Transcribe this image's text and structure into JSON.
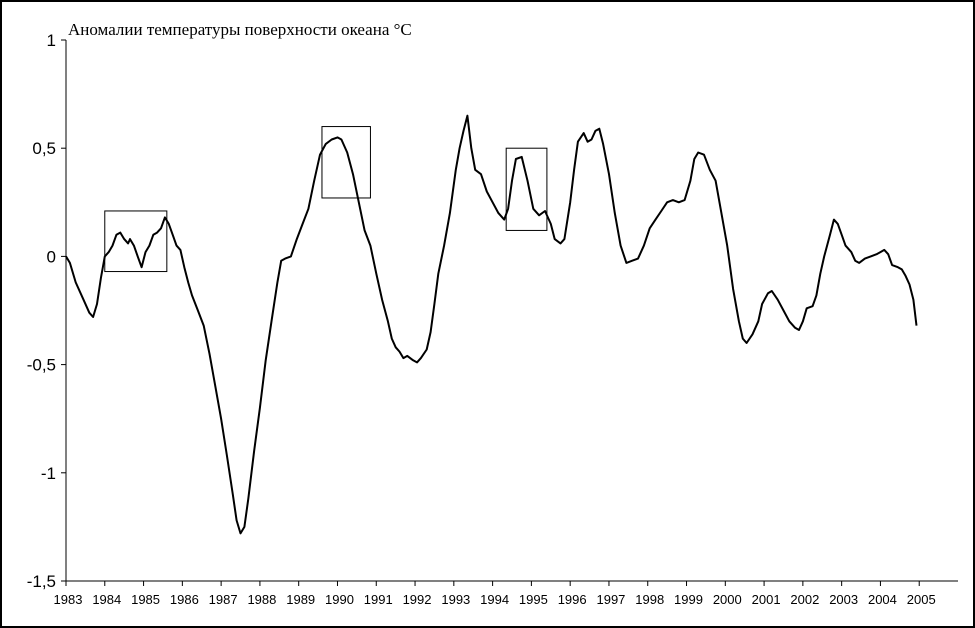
{
  "chart_data": {
    "type": "line",
    "title": "Аномалии температуры поверхности океана °С",
    "xlabel": "",
    "ylabel": "",
    "xlim": [
      1983.0,
      2006.0
    ],
    "ylim": [
      -1.5,
      1.0
    ],
    "grid": false,
    "legend": "none",
    "y_ticks": [
      "1",
      "0,5",
      "0",
      "-0,5",
      "-1",
      "-1,5"
    ],
    "y_tick_values": [
      1,
      0.5,
      0,
      -0.5,
      -1,
      -1.5
    ],
    "x_ticks": [
      "1983",
      "1984",
      "1985",
      "1986",
      "1987",
      "1988",
      "1989",
      "1990",
      "1991",
      "1992",
      "1993",
      "1994",
      "1995",
      "1996",
      "1997",
      "1998",
      "1999",
      "2000",
      "2001",
      "2002",
      "2003",
      "2004",
      "2005"
    ],
    "series": [
      {
        "color": "#000000",
        "points": [
          [
            1983.0,
            0.0
          ],
          [
            1983.1,
            -0.03
          ],
          [
            1983.25,
            -0.12
          ],
          [
            1983.45,
            -0.2
          ],
          [
            1983.6,
            -0.26
          ],
          [
            1983.7,
            -0.28
          ],
          [
            1983.8,
            -0.22
          ],
          [
            1983.9,
            -0.1
          ],
          [
            1984.0,
            0.0
          ],
          [
            1984.1,
            0.02
          ],
          [
            1984.2,
            0.05
          ],
          [
            1984.3,
            0.1
          ],
          [
            1984.4,
            0.11
          ],
          [
            1984.5,
            0.08
          ],
          [
            1984.6,
            0.06
          ],
          [
            1984.65,
            0.08
          ],
          [
            1984.75,
            0.05
          ],
          [
            1984.85,
            0.0
          ],
          [
            1984.95,
            -0.05
          ],
          [
            1985.05,
            0.02
          ],
          [
            1985.15,
            0.05
          ],
          [
            1985.25,
            0.1
          ],
          [
            1985.35,
            0.11
          ],
          [
            1985.45,
            0.13
          ],
          [
            1985.55,
            0.18
          ],
          [
            1985.65,
            0.15
          ],
          [
            1985.75,
            0.1
          ],
          [
            1985.85,
            0.05
          ],
          [
            1985.95,
            0.03
          ],
          [
            1986.05,
            -0.05
          ],
          [
            1986.15,
            -0.12
          ],
          [
            1986.25,
            -0.18
          ],
          [
            1986.4,
            -0.25
          ],
          [
            1986.55,
            -0.32
          ],
          [
            1986.7,
            -0.45
          ],
          [
            1986.85,
            -0.6
          ],
          [
            1987.0,
            -0.75
          ],
          [
            1987.15,
            -0.92
          ],
          [
            1987.3,
            -1.1
          ],
          [
            1987.4,
            -1.22
          ],
          [
            1987.5,
            -1.28
          ],
          [
            1987.6,
            -1.25
          ],
          [
            1987.7,
            -1.12
          ],
          [
            1987.85,
            -0.9
          ],
          [
            1988.0,
            -0.7
          ],
          [
            1988.15,
            -0.48
          ],
          [
            1988.3,
            -0.3
          ],
          [
            1988.45,
            -0.12
          ],
          [
            1988.55,
            -0.02
          ],
          [
            1988.65,
            -0.01
          ],
          [
            1988.8,
            0.0
          ],
          [
            1988.95,
            0.08
          ],
          [
            1989.1,
            0.15
          ],
          [
            1989.25,
            0.22
          ],
          [
            1989.4,
            0.35
          ],
          [
            1989.55,
            0.47
          ],
          [
            1989.7,
            0.52
          ],
          [
            1989.85,
            0.54
          ],
          [
            1990.0,
            0.55
          ],
          [
            1990.1,
            0.54
          ],
          [
            1990.25,
            0.48
          ],
          [
            1990.4,
            0.38
          ],
          [
            1990.55,
            0.25
          ],
          [
            1990.7,
            0.12
          ],
          [
            1990.85,
            0.05
          ],
          [
            1991.0,
            -0.08
          ],
          [
            1991.15,
            -0.2
          ],
          [
            1991.3,
            -0.3
          ],
          [
            1991.4,
            -0.38
          ],
          [
            1991.5,
            -0.42
          ],
          [
            1991.6,
            -0.44
          ],
          [
            1991.7,
            -0.47
          ],
          [
            1991.8,
            -0.46
          ],
          [
            1991.95,
            -0.48
          ],
          [
            1992.05,
            -0.49
          ],
          [
            1992.15,
            -0.47
          ],
          [
            1992.3,
            -0.43
          ],
          [
            1992.4,
            -0.35
          ],
          [
            1992.5,
            -0.22
          ],
          [
            1992.6,
            -0.08
          ],
          [
            1992.75,
            0.05
          ],
          [
            1992.9,
            0.2
          ],
          [
            1993.05,
            0.4
          ],
          [
            1993.15,
            0.5
          ],
          [
            1993.25,
            0.58
          ],
          [
            1993.35,
            0.65
          ],
          [
            1993.45,
            0.5
          ],
          [
            1993.55,
            0.4
          ],
          [
            1993.7,
            0.38
          ],
          [
            1993.85,
            0.3
          ],
          [
            1994.0,
            0.25
          ],
          [
            1994.15,
            0.2
          ],
          [
            1994.3,
            0.17
          ],
          [
            1994.4,
            0.22
          ],
          [
            1994.5,
            0.35
          ],
          [
            1994.6,
            0.45
          ],
          [
            1994.75,
            0.46
          ],
          [
            1994.9,
            0.35
          ],
          [
            1995.05,
            0.22
          ],
          [
            1995.2,
            0.19
          ],
          [
            1995.35,
            0.21
          ],
          [
            1995.5,
            0.15
          ],
          [
            1995.6,
            0.08
          ],
          [
            1995.75,
            0.06
          ],
          [
            1995.85,
            0.08
          ],
          [
            1996.0,
            0.25
          ],
          [
            1996.1,
            0.4
          ],
          [
            1996.2,
            0.53
          ],
          [
            1996.35,
            0.57
          ],
          [
            1996.45,
            0.53
          ],
          [
            1996.55,
            0.54
          ],
          [
            1996.65,
            0.58
          ],
          [
            1996.75,
            0.59
          ],
          [
            1996.85,
            0.52
          ],
          [
            1997.0,
            0.38
          ],
          [
            1997.15,
            0.2
          ],
          [
            1997.3,
            0.05
          ],
          [
            1997.45,
            -0.03
          ],
          [
            1997.6,
            -0.02
          ],
          [
            1997.75,
            -0.01
          ],
          [
            1997.9,
            0.05
          ],
          [
            1998.05,
            0.13
          ],
          [
            1998.2,
            0.17
          ],
          [
            1998.35,
            0.21
          ],
          [
            1998.5,
            0.25
          ],
          [
            1998.65,
            0.26
          ],
          [
            1998.8,
            0.25
          ],
          [
            1998.95,
            0.26
          ],
          [
            1999.1,
            0.35
          ],
          [
            1999.2,
            0.45
          ],
          [
            1999.3,
            0.48
          ],
          [
            1999.45,
            0.47
          ],
          [
            1999.6,
            0.4
          ],
          [
            1999.75,
            0.35
          ],
          [
            1999.9,
            0.2
          ],
          [
            2000.05,
            0.05
          ],
          [
            2000.2,
            -0.15
          ],
          [
            2000.35,
            -0.3
          ],
          [
            2000.45,
            -0.38
          ],
          [
            2000.55,
            -0.4
          ],
          [
            2000.7,
            -0.36
          ],
          [
            2000.85,
            -0.3
          ],
          [
            2000.95,
            -0.22
          ],
          [
            2001.1,
            -0.17
          ],
          [
            2001.2,
            -0.16
          ],
          [
            2001.35,
            -0.2
          ],
          [
            2001.5,
            -0.25
          ],
          [
            2001.65,
            -0.3
          ],
          [
            2001.8,
            -0.33
          ],
          [
            2001.9,
            -0.34
          ],
          [
            2002.0,
            -0.3
          ],
          [
            2002.1,
            -0.24
          ],
          [
            2002.25,
            -0.23
          ],
          [
            2002.35,
            -0.18
          ],
          [
            2002.45,
            -0.08
          ],
          [
            2002.55,
            0.0
          ],
          [
            2002.7,
            0.1
          ],
          [
            2002.8,
            0.17
          ],
          [
            2002.9,
            0.15
          ],
          [
            2003.0,
            0.1
          ],
          [
            2003.1,
            0.05
          ],
          [
            2003.25,
            0.02
          ],
          [
            2003.35,
            -0.02
          ],
          [
            2003.45,
            -0.03
          ],
          [
            2003.6,
            -0.01
          ],
          [
            2003.75,
            0.0
          ],
          [
            2003.9,
            0.01
          ],
          [
            2004.0,
            0.02
          ],
          [
            2004.1,
            0.03
          ],
          [
            2004.2,
            0.01
          ],
          [
            2004.3,
            -0.04
          ],
          [
            2004.45,
            -0.05
          ],
          [
            2004.55,
            -0.06
          ],
          [
            2004.65,
            -0.09
          ],
          [
            2004.75,
            -0.13
          ],
          [
            2004.85,
            -0.2
          ],
          [
            2004.93,
            -0.32
          ]
        ]
      }
    ],
    "boxes": [
      {
        "x0": 1984.0,
        "x1": 1985.6,
        "y0": -0.07,
        "y1": 0.21
      },
      {
        "x0": 1989.6,
        "x1": 1990.85,
        "y0": 0.27,
        "y1": 0.6
      },
      {
        "x0": 1994.35,
        "x1": 1995.4,
        "y0": 0.12,
        "y1": 0.5
      }
    ]
  }
}
